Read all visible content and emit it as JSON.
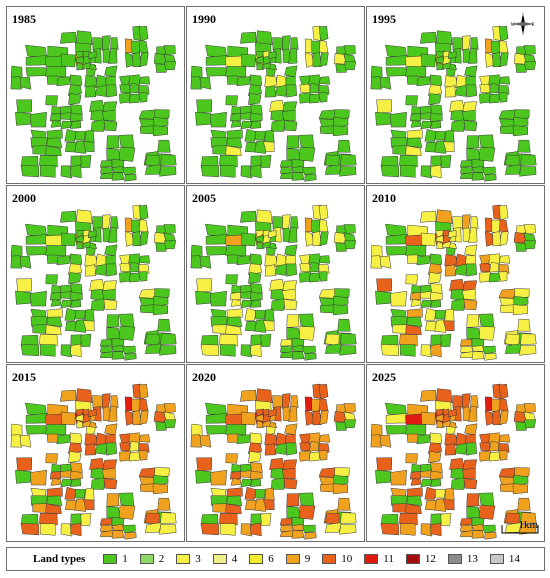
{
  "panels": [
    {
      "year": "1985",
      "mix": [
        1.0,
        0.0,
        0.0,
        0.02,
        0.0,
        0.0,
        0.0
      ]
    },
    {
      "year": "1990",
      "mix": [
        0.9,
        0.0,
        0.1,
        0.0,
        0.0,
        0.0,
        0.0
      ]
    },
    {
      "year": "1995",
      "mix": [
        0.82,
        0.0,
        0.16,
        0.02,
        0.0,
        0.0,
        0.0
      ]
    },
    {
      "year": "2000",
      "mix": [
        0.78,
        0.0,
        0.2,
        0.02,
        0.0,
        0.0,
        0.0
      ]
    },
    {
      "year": "2005",
      "mix": [
        0.6,
        0.0,
        0.36,
        0.04,
        0.0,
        0.0,
        0.0
      ]
    },
    {
      "year": "2010",
      "mix": [
        0.3,
        0.0,
        0.45,
        0.13,
        0.12,
        0.0,
        0.0
      ]
    },
    {
      "year": "2015",
      "mix": [
        0.22,
        0.0,
        0.15,
        0.28,
        0.33,
        0.02,
        0.0
      ]
    },
    {
      "year": "2020",
      "mix": [
        0.22,
        0.0,
        0.1,
        0.3,
        0.36,
        0.02,
        0.0
      ]
    },
    {
      "year": "2025",
      "mix": [
        0.2,
        0.0,
        0.08,
        0.3,
        0.38,
        0.04,
        0.0
      ]
    }
  ],
  "mix_classes": [
    "1",
    "2",
    "3",
    "9",
    "10",
    "11",
    "12"
  ],
  "compass": {
    "n": "N",
    "s": "S",
    "e": "E",
    "w": "W"
  },
  "scale_label": "1km",
  "legend": {
    "title": "Land types",
    "items": [
      {
        "label": "1",
        "color": "#4cc71d"
      },
      {
        "label": "2",
        "color": "#8ed86a"
      },
      {
        "label": "3",
        "color": "#f6f044"
      },
      {
        "label": "4",
        "color": "#f2ef8a"
      },
      {
        "label": "6",
        "color": "#f4ea2a"
      },
      {
        "label": "9",
        "color": "#f0a21e"
      },
      {
        "label": "10",
        "color": "#e8621c"
      },
      {
        "label": "11",
        "color": "#e01b10"
      },
      {
        "label": "12",
        "color": "#a50d0d"
      },
      {
        "label": "13",
        "color": "#8c8c8c"
      },
      {
        "label": "14",
        "color": "#c8c8c8"
      }
    ]
  }
}
